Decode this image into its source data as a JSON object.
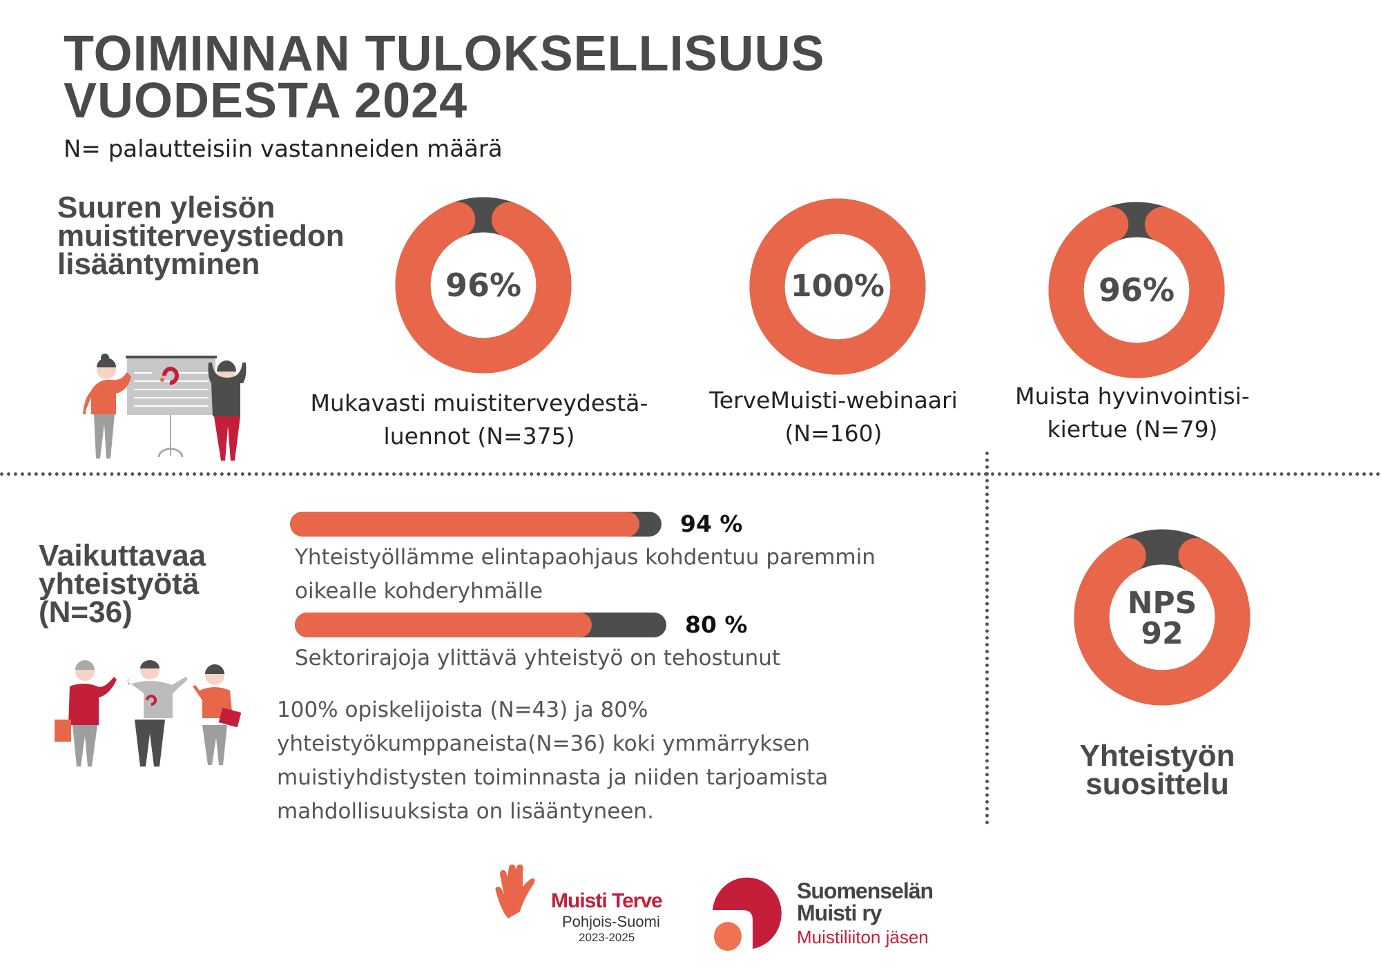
{
  "header": {
    "title_line1": "TOIMINNAN TULOKSELLISUUS",
    "title_line2": "VUODESTA 2024",
    "subtitle": "N= palautteisiin vastanneiden määrä"
  },
  "colors": {
    "accent": "#E8674A",
    "dark": "#4D4D4D",
    "brand_red": "#C41E3A"
  },
  "section1": {
    "heading": [
      "Suuren yleisön",
      "muistiterveystiedon",
      "lisääntyminen"
    ],
    "donuts": [
      {
        "value": 96,
        "center": "96%",
        "label": [
          "Mukavasti muistiterveydestä-",
          "luennot (N=375)"
        ]
      },
      {
        "value": 100,
        "center": "100%",
        "label": [
          "TerveMuisti-webinaari",
          "(N=160)"
        ]
      },
      {
        "value": 96,
        "center": "96%",
        "label": [
          "Muista hyvinvointisi-",
          "kiertue (N=79)"
        ]
      }
    ]
  },
  "section2": {
    "heading": [
      "Vaikuttavaa",
      "yhteistyötä",
      "(N=36)"
    ],
    "bars": [
      {
        "value": 94,
        "value_label": "94 %",
        "text": [
          "Yhteistyöllämme elintapaohjaus kohdentuu paremmin",
          "oikealle kohderyhmälle"
        ]
      },
      {
        "value": 80,
        "value_label": "80 %",
        "text": [
          "Sektorirajoja ylittävä yhteistyö on tehostunut"
        ]
      }
    ],
    "paragraph": [
      "100% opiskelijoista (N=43) ja 80%",
      "yhteistyökumppaneista(N=36) koki ymmärryksen",
      "muistiyhdistysten toiminnasta ja niiden tarjoamista",
      "mahdollisuuksista on lisääntyneen."
    ]
  },
  "section3": {
    "nps_value": 92,
    "center": [
      "NPS",
      "92"
    ],
    "heading": [
      "Yhteistyön",
      "suosittelu"
    ]
  },
  "logos": {
    "muisti_terve": {
      "name": "Muisti Terve",
      "region": "Pohjois-Suomi",
      "years": "2023-2025"
    },
    "suomenselan": {
      "line1": "Suomenselän",
      "line2": "Muisti ry",
      "line3": "Muistiliiton jäsen"
    }
  }
}
